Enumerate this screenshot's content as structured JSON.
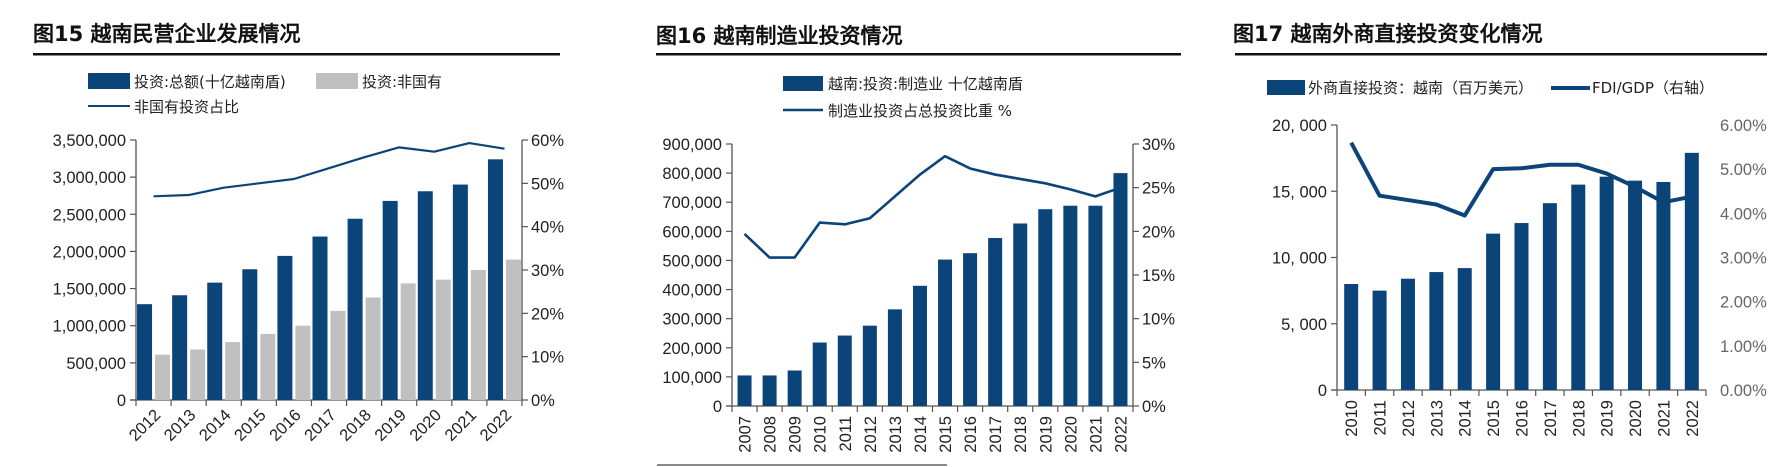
{
  "colors": {
    "navy": "#0b4479",
    "gray": "#c0c0c0",
    "axis": "#555555",
    "rule": "#111111"
  },
  "chart_data": [
    {
      "id": "fig15",
      "type": "bar",
      "title": "图15 越南民营企业发展情况",
      "categories": [
        "2012",
        "2013",
        "2014",
        "2015",
        "2016",
        "2017",
        "2018",
        "2019",
        "2020",
        "2021",
        "2022"
      ],
      "series": [
        {
          "name": "投资:总额(十亿越南盾)",
          "kind": "bar",
          "axis": "left",
          "color": "#0b4479",
          "values": [
            1290000,
            1410000,
            1580000,
            1760000,
            1940000,
            2200000,
            2440000,
            2680000,
            2810000,
            2900000,
            3240000
          ]
        },
        {
          "name": "投资:非国有",
          "kind": "bar",
          "axis": "left",
          "color": "#c0c0c0",
          "values": [
            610000,
            680000,
            780000,
            890000,
            1000000,
            1200000,
            1380000,
            1570000,
            1620000,
            1750000,
            1890000
          ]
        },
        {
          "name": "非国有投资占比",
          "kind": "line",
          "axis": "right",
          "color": "#0b4479",
          "values": [
            0.47,
            0.473,
            0.49,
            0.5,
            0.51,
            0.535,
            0.56,
            0.583,
            0.573,
            0.593,
            0.58
          ]
        }
      ],
      "ylim": [
        0,
        3500000
      ],
      "y2lim": [
        0,
        0.6
      ],
      "yticks": [
        "0",
        "500,000",
        "1,000,000",
        "1,500,000",
        "2,000,000",
        "2,500,000",
        "3,000,000",
        "3,500,000"
      ],
      "y2ticks": [
        "0%",
        "10%",
        "20%",
        "30%",
        "40%",
        "50%",
        "60%"
      ],
      "legend": "top"
    },
    {
      "id": "fig16",
      "type": "bar",
      "title": "图16 越南制造业投资情况",
      "categories": [
        "2007",
        "2008",
        "2009",
        "2010",
        "2011",
        "2012",
        "2013",
        "2014",
        "2015",
        "2016",
        "2017",
        "2018",
        "2019",
        "2020",
        "2021",
        "2022"
      ],
      "series": [
        {
          "name": "越南:投资:制造业  十亿越南盾",
          "kind": "bar",
          "axis": "left",
          "color": "#0b4479",
          "values": [
            105000,
            105000,
            122000,
            218000,
            242000,
            276000,
            332000,
            413000,
            503000,
            525000,
            577000,
            627000,
            676000,
            688000,
            688000,
            800000
          ]
        },
        {
          "name": "制造业投资占总投资比重 %",
          "kind": "line",
          "axis": "right",
          "color": "#0b4479",
          "values": [
            0.197,
            0.17,
            0.17,
            0.21,
            0.208,
            0.215,
            0.24,
            0.265,
            0.286,
            0.272,
            0.265,
            0.26,
            0.255,
            0.248,
            0.24,
            0.25
          ]
        }
      ],
      "ylim": [
        0,
        900000
      ],
      "y2lim": [
        0,
        0.3
      ],
      "yticks": [
        "0",
        "100,000",
        "200,000",
        "300,000",
        "400,000",
        "500,000",
        "600,000",
        "700,000",
        "800,000",
        "900,000"
      ],
      "y2ticks": [
        "0%",
        "5%",
        "10%",
        "15%",
        "20%",
        "25%",
        "30%"
      ],
      "legend": "top"
    },
    {
      "id": "fig17",
      "type": "bar",
      "title": "图17 越南外商直接投资变化情况",
      "categories": [
        "2010",
        "2011",
        "2012",
        "2013",
        "2014",
        "2015",
        "2016",
        "2017",
        "2018",
        "2019",
        "2020",
        "2021",
        "2022"
      ],
      "series": [
        {
          "name": "外商直接投资：越南（百万美元）",
          "kind": "bar",
          "axis": "left",
          "color": "#0b4479",
          "values": [
            8000,
            7500,
            8400,
            8900,
            9200,
            11800,
            12600,
            14100,
            15500,
            16100,
            15800,
            15700,
            17900
          ]
        },
        {
          "name": "FDI/GDP（右轴）",
          "kind": "line",
          "axis": "right",
          "color": "#0b4479",
          "values": [
            0.056,
            0.044,
            0.043,
            0.042,
            0.0395,
            0.05,
            0.0502,
            0.051,
            0.051,
            0.049,
            0.046,
            0.0425,
            0.0438
          ]
        }
      ],
      "ylim": [
        0,
        20000
      ],
      "y2lim": [
        0,
        0.06
      ],
      "yticks": [
        "0",
        "5, 000",
        "10, 000",
        "15, 000",
        "20, 000"
      ],
      "y2ticks": [
        "0.00%",
        "1.00%",
        "2.00%",
        "3.00%",
        "4.00%",
        "5.00%",
        "6.00%"
      ],
      "legend": "top"
    }
  ]
}
